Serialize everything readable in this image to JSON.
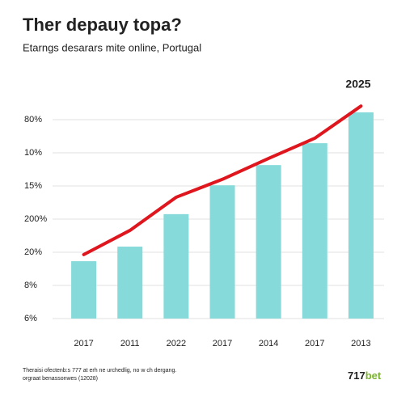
{
  "chart_data": {
    "type": "bar",
    "title": "Ther depauy topa?",
    "subtitle": "Etarngs desarars mite online, Portugal",
    "annotation": "2025",
    "categories": [
      "2017",
      "2011",
      "2022",
      "2017",
      "2014",
      "2017",
      "2013"
    ],
    "series": [
      {
        "type": "bar",
        "color": "#86dada",
        "values": [
          1.73,
          2.17,
          3.15,
          4.02,
          4.63,
          5.29,
          6.22
        ]
      },
      {
        "type": "line",
        "color": "#e0161e",
        "values": [
          1.93,
          2.66,
          3.66,
          4.2,
          4.83,
          5.44,
          6.41
        ]
      }
    ],
    "ylim": [
      0,
      6.6
    ],
    "yticks": [
      {
        "value": 0,
        "label": "6%"
      },
      {
        "value": 1,
        "label": "8%"
      },
      {
        "value": 2,
        "label": "20%"
      },
      {
        "value": 3,
        "label": "200%"
      },
      {
        "value": 4,
        "label": "15%"
      },
      {
        "value": 5,
        "label": "10%"
      },
      {
        "value": 6,
        "label": "80%"
      }
    ],
    "grid": true,
    "footnote": [
      "Theraisi ofectenb:s 777 at erh ne urchedlig, no w ch dergang.",
      "orgraat benassonwes (12028)"
    ],
    "logo": {
      "number": "717",
      "word": "bet"
    }
  }
}
